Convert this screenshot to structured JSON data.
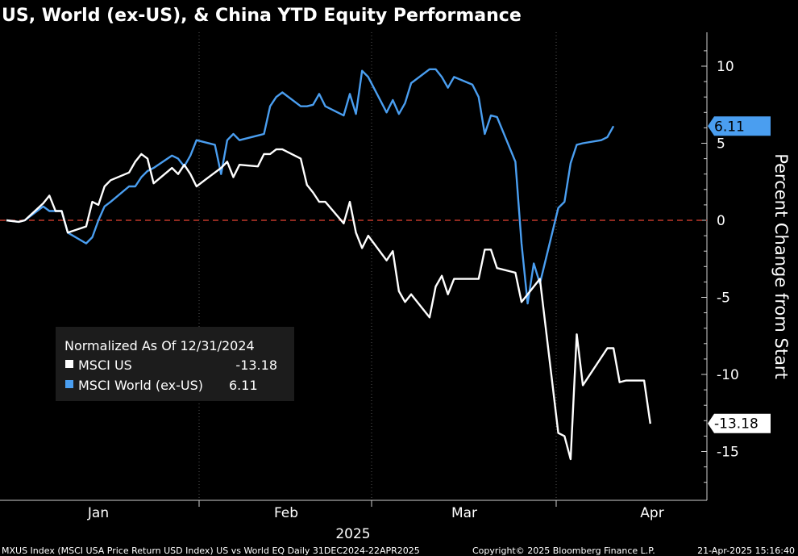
{
  "chart_data": {
    "type": "line",
    "title": "US, World (ex-US), & China YTD Equity Performance",
    "ylabel": "Percent Change from Start",
    "ylim": [
      -18,
      12
    ],
    "yticks": [
      10,
      5,
      0,
      -5,
      -10,
      -15
    ],
    "xlabel_year": "2025",
    "x_months": [
      "Jan",
      "Feb",
      "Mar",
      "Apr"
    ],
    "x_range": [
      "2024-12-31",
      "2025-04-22"
    ],
    "zero_line": {
      "value": 0,
      "color": "#c0392b",
      "style": "dashed"
    },
    "legend": {
      "title": "Normalized As Of 12/31/2024",
      "placement": "bottom-left",
      "entries": [
        {
          "name": "MSCI US",
          "value": "-13.18",
          "color": "#ffffff"
        },
        {
          "name": "MSCI World (ex-US)",
          "value": "6.11",
          "color": "#4a9ef0"
        }
      ]
    },
    "series": [
      {
        "name": "MSCI US",
        "color": "#ffffff",
        "last_label": "-13.18",
        "x": [
          "2024-12-31",
          "2025-01-02",
          "2025-01-03",
          "2025-01-06",
          "2025-01-07",
          "2025-01-08",
          "2025-01-09",
          "2025-01-10",
          "2025-01-13",
          "2025-01-14",
          "2025-01-15",
          "2025-01-16",
          "2025-01-17",
          "2025-01-20",
          "2025-01-21",
          "2025-01-22",
          "2025-01-23",
          "2025-01-24",
          "2025-01-27",
          "2025-01-28",
          "2025-01-29",
          "2025-01-30",
          "2025-01-31",
          "2025-02-03",
          "2025-02-04",
          "2025-02-05",
          "2025-02-06",
          "2025-02-07",
          "2025-02-10",
          "2025-02-11",
          "2025-02-12",
          "2025-02-13",
          "2025-02-14",
          "2025-02-17",
          "2025-02-18",
          "2025-02-19",
          "2025-02-20",
          "2025-02-21",
          "2025-02-24",
          "2025-02-25",
          "2025-02-26",
          "2025-02-27",
          "2025-02-28",
          "2025-03-03",
          "2025-03-04",
          "2025-03-05",
          "2025-03-06",
          "2025-03-07",
          "2025-03-10",
          "2025-03-11",
          "2025-03-12",
          "2025-03-13",
          "2025-03-14",
          "2025-03-17",
          "2025-03-18",
          "2025-03-19",
          "2025-03-20",
          "2025-03-21",
          "2025-03-24",
          "2025-03-25",
          "2025-03-26",
          "2025-03-27",
          "2025-03-28",
          "2025-03-31",
          "2025-04-01",
          "2025-04-02",
          "2025-04-03",
          "2025-04-04",
          "2025-04-07",
          "2025-04-08",
          "2025-04-09",
          "2025-04-10",
          "2025-04-11",
          "2025-04-14",
          "2025-04-15",
          "2025-04-16",
          "2025-04-17",
          "2025-04-18",
          "2025-04-21"
        ],
        "y": [
          0,
          -0.1,
          0,
          1.1,
          1.6,
          0.6,
          0.6,
          -0.8,
          -0.4,
          1.2,
          1.0,
          2.2,
          2.6,
          3.1,
          3.8,
          4.3,
          4.0,
          2.4,
          3.4,
          3.0,
          3.6,
          3.0,
          2.2,
          3.1,
          3.4,
          3.8,
          2.8,
          3.6,
          3.5,
          4.3,
          4.3,
          4.6,
          4.6,
          4.0,
          2.3,
          1.8,
          1.2,
          1.2,
          -0.2,
          1.2,
          -0.8,
          -1.8,
          -1.0,
          -2.6,
          -2.0,
          -4.6,
          -5.3,
          -4.8,
          -6.3,
          -4.3,
          -3.6,
          -4.8,
          -3.8,
          -3.8,
          -3.8,
          -1.9,
          -1.9,
          -3.1,
          -3.4,
          -5.3,
          -4.8,
          -4.3,
          -3.8,
          -13.8,
          -14.0,
          -15.5,
          -7.4,
          -10.7,
          -8.9,
          -8.3,
          -8.3,
          -10.5,
          -10.4,
          -10.4,
          -13.2,
          null,
          null,
          null,
          null
        ],
        "note_final_value": -13.18
      },
      {
        "name": "MSCI World (ex-US)",
        "color": "#4a9ef0",
        "last_label": "6.11",
        "x": [
          "2024-12-31",
          "2025-01-02",
          "2025-01-03",
          "2025-01-06",
          "2025-01-07",
          "2025-01-08",
          "2025-01-09",
          "2025-01-10",
          "2025-01-13",
          "2025-01-14",
          "2025-01-15",
          "2025-01-16",
          "2025-01-17",
          "2025-01-20",
          "2025-01-21",
          "2025-01-22",
          "2025-01-23",
          "2025-01-24",
          "2025-01-27",
          "2025-01-28",
          "2025-01-29",
          "2025-01-30",
          "2025-01-31",
          "2025-02-03",
          "2025-02-04",
          "2025-02-05",
          "2025-02-06",
          "2025-02-07",
          "2025-02-10",
          "2025-02-11",
          "2025-02-12",
          "2025-02-13",
          "2025-02-14",
          "2025-02-17",
          "2025-02-18",
          "2025-02-19",
          "2025-02-20",
          "2025-02-21",
          "2025-02-24",
          "2025-02-25",
          "2025-02-26",
          "2025-02-27",
          "2025-02-28",
          "2025-03-03",
          "2025-03-04",
          "2025-03-05",
          "2025-03-06",
          "2025-03-07",
          "2025-03-10",
          "2025-03-11",
          "2025-03-12",
          "2025-03-13",
          "2025-03-14",
          "2025-03-17",
          "2025-03-18",
          "2025-03-19",
          "2025-03-20",
          "2025-03-21",
          "2025-03-24",
          "2025-03-25",
          "2025-03-26",
          "2025-03-27",
          "2025-03-28",
          "2025-03-31",
          "2025-04-01",
          "2025-04-02",
          "2025-04-03",
          "2025-04-04",
          "2025-04-07",
          "2025-04-08",
          "2025-04-09",
          "2025-04-10",
          "2025-04-11",
          "2025-04-14",
          "2025-04-15",
          "2025-04-16",
          "2025-04-17",
          "2025-04-18",
          "2025-04-21"
        ],
        "y": [
          0,
          -0.1,
          0,
          0.9,
          0.6,
          0.6,
          0.6,
          -0.8,
          -1.5,
          -1.1,
          0,
          0.9,
          1.2,
          2.2,
          2.2,
          2.8,
          3.2,
          3.4,
          4.2,
          4.0,
          3.5,
          4.2,
          5.2,
          4.9,
          3.0,
          5.2,
          5.6,
          5.2,
          5.5,
          5.6,
          7.4,
          8.0,
          8.3,
          7.4,
          7.4,
          7.5,
          8.2,
          7.4,
          6.8,
          8.2,
          6.9,
          9.7,
          9.3,
          7.0,
          7.8,
          6.9,
          7.6,
          8.9,
          9.8,
          9.8,
          9.3,
          8.6,
          9.3,
          8.8,
          8.0,
          5.6,
          6.8,
          6.7,
          3.8,
          -1.5,
          -5.4,
          -2.8,
          -4.1,
          0.8,
          1.2,
          3.7,
          4.9,
          5.0,
          5.2,
          5.4,
          6.11,
          null,
          null,
          null,
          null,
          null,
          null,
          null,
          null
        ]
      }
    ]
  },
  "header": {
    "title": "US, World (ex-US), & China YTD Equity Performance"
  },
  "footer": {
    "left": "MXUS Index (MSCI USA Price Return USD Index) US vs World EQ  Daily 31DEC2024-22APR2025",
    "center": "Copyright© 2025 Bloomberg Finance L.P.",
    "right": "21-Apr-2025 15:16:40"
  }
}
